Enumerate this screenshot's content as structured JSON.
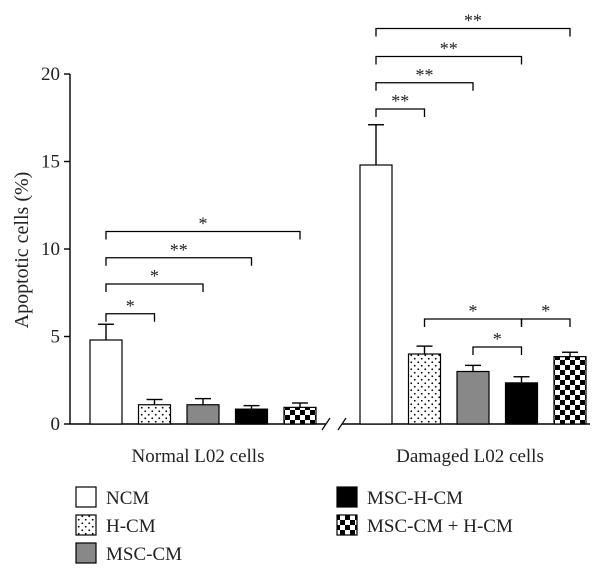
{
  "chart_data": {
    "type": "bar",
    "title": "",
    "ylabel": "Apoptotic cells (%)",
    "xlabel": "",
    "ylim": [
      0,
      20
    ],
    "yticks": [
      0,
      5,
      10,
      15,
      20
    ],
    "categories": [
      "Normal L02 cells",
      "Damaged L02 cells"
    ],
    "series": [
      {
        "name": "NCM",
        "values": [
          4.8,
          14.8
        ],
        "errors": [
          0.9,
          2.3
        ],
        "fill": "#ffffff",
        "pattern": "none"
      },
      {
        "name": "H-CM",
        "values": [
          1.1,
          4.0
        ],
        "errors": [
          0.3,
          0.45
        ],
        "fill": "#ffffff",
        "pattern": "dots"
      },
      {
        "name": "MSC-CM",
        "values": [
          1.1,
          3.0
        ],
        "errors": [
          0.35,
          0.35
        ],
        "fill": "#888888",
        "pattern": "none"
      },
      {
        "name": "MSC-H-CM",
        "values": [
          0.85,
          2.35
        ],
        "errors": [
          0.2,
          0.35
        ],
        "fill": "#000000",
        "pattern": "none"
      },
      {
        "name": "MSC-CM + H-CM",
        "values": [
          0.95,
          3.85
        ],
        "errors": [
          0.25,
          0.25
        ],
        "fill": "#ffffff",
        "pattern": "checker"
      }
    ],
    "significance": [
      {
        "group": 0,
        "from": 0,
        "to": 1,
        "level": 6.3,
        "label": "*"
      },
      {
        "group": 0,
        "from": 0,
        "to": 2,
        "level": 8.0,
        "label": "*"
      },
      {
        "group": 0,
        "from": 0,
        "to": 3,
        "level": 9.5,
        "label": "**"
      },
      {
        "group": 0,
        "from": 0,
        "to": 4,
        "level": 11.0,
        "label": "*"
      },
      {
        "group": 1,
        "from": 0,
        "to": 1,
        "level": 18.0,
        "label": "**"
      },
      {
        "group": 1,
        "from": 0,
        "to": 2,
        "level": 19.5,
        "label": "**"
      },
      {
        "group": 1,
        "from": 0,
        "to": 3,
        "level": 21.0,
        "label": "**"
      },
      {
        "group": 1,
        "from": 0,
        "to": 4,
        "level": 22.6,
        "label": "**"
      },
      {
        "group": 1,
        "from": 1,
        "to": 3,
        "level": 6.0,
        "label": "*"
      },
      {
        "group": 1,
        "from": 3,
        "to": 4,
        "level": 6.0,
        "label": "*"
      },
      {
        "group": 1,
        "from": 2,
        "to": 3,
        "level": 4.4,
        "label": "*"
      }
    ],
    "grid": false,
    "legend_position": "bottom"
  }
}
